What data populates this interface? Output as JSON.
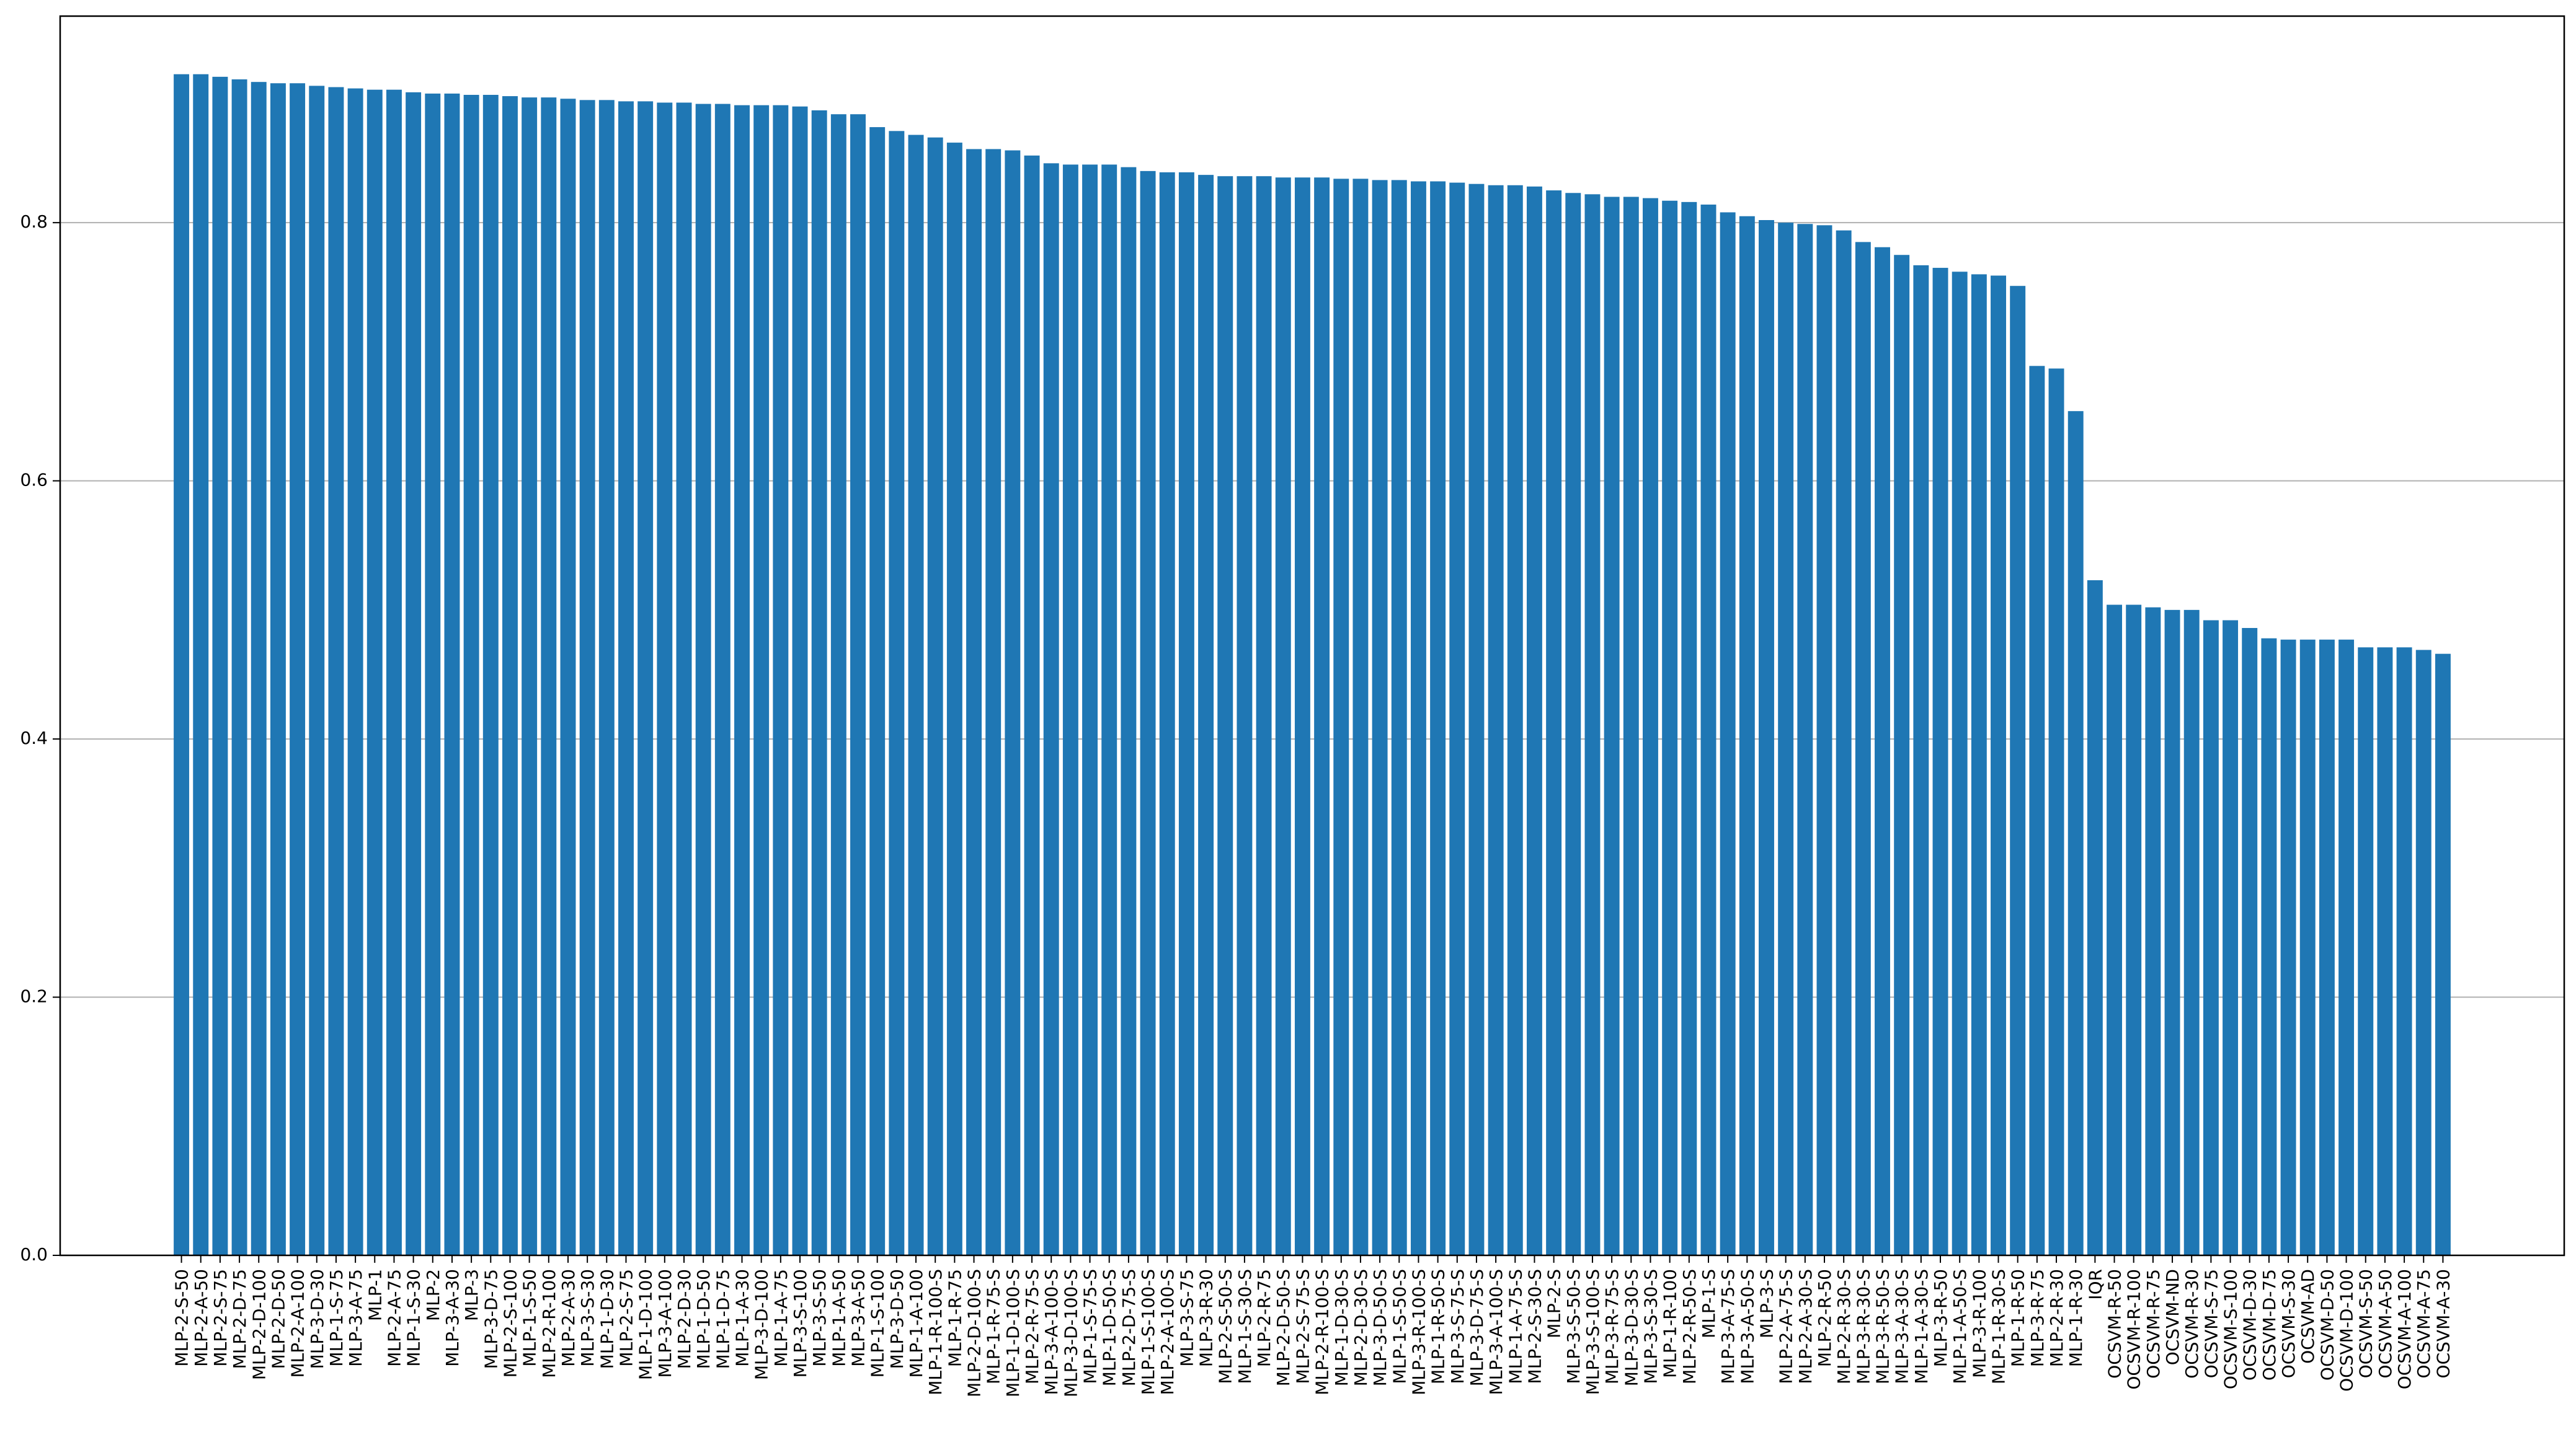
{
  "chart_data": {
    "type": "bar",
    "color": "#1f77b4",
    "grid": "y",
    "ylim": [
      0,
      0.96
    ],
    "yticks": [
      {
        "value": 0.0,
        "label": "0.0"
      },
      {
        "value": 0.2,
        "label": "0.2"
      },
      {
        "value": 0.4,
        "label": "0.4"
      },
      {
        "value": 0.6,
        "label": "0.6"
      },
      {
        "value": 0.8,
        "label": "0.8"
      }
    ],
    "categories": [
      "MLP-2-S-50",
      "MLP-2-A-50",
      "MLP-2-S-75",
      "MLP-2-D-75",
      "MLP-2-D-100",
      "MLP-2-D-50",
      "MLP-2-A-100",
      "MLP-3-D-30",
      "MLP-1-S-75",
      "MLP-3-A-75",
      "MLP-1",
      "MLP-2-A-75",
      "MLP-1-S-30",
      "MLP-2",
      "MLP-3-A-30",
      "MLP-3",
      "MLP-3-D-75",
      "MLP-2-S-100",
      "MLP-1-S-50",
      "MLP-2-R-100",
      "MLP-2-A-30",
      "MLP-3-S-30",
      "MLP-1-D-30",
      "MLP-2-S-75",
      "MLP-1-D-100",
      "MLP-3-A-100",
      "MLP-2-D-30",
      "MLP-1-D-50",
      "MLP-1-D-75",
      "MLP-1-A-30",
      "MLP-3-D-100",
      "MLP-1-A-75",
      "MLP-3-S-100",
      "MLP-3-S-50",
      "MLP-1-A-50",
      "MLP-3-A-50",
      "MLP-1-S-100",
      "MLP-3-D-50",
      "MLP-1-A-100",
      "MLP-1-R-100-S",
      "MLP-1-R-75",
      "MLP-2-D-100-S",
      "MLP-1-R-75-S",
      "MLP-1-D-100-S",
      "MLP-2-R-75-S",
      "MLP-3-A-100-S",
      "MLP-3-D-100-S",
      "MLP-1-S-75-S",
      "MLP-1-D-50-S",
      "MLP-2-D-75-S",
      "MLP-1-S-100-S",
      "MLP-2-A-100-S",
      "MLP-3-S-75",
      "MLP-3-R-30",
      "MLP-2-S-50-S",
      "MLP-1-S-30-S",
      "MLP-2-R-75",
      "MLP-2-D-50-S",
      "MLP-2-S-75-S",
      "MLP-2-R-100-S",
      "MLP-1-D-30-S",
      "MLP-2-D-30-S",
      "MLP-3-D-50-S",
      "MLP-1-S-50-S",
      "MLP-3-R-100-S",
      "MLP-1-R-50-S",
      "MLP-3-S-75-S",
      "MLP-3-D-75-S",
      "MLP-3-A-100-S",
      "MLP-1-A-75-S",
      "MLP-2-S-30-S",
      "MLP-2-S",
      "MLP-3-S-50-S",
      "MLP-3-S-100-S",
      "MLP-3-R-75-S",
      "MLP-3-D-30-S",
      "MLP-3-S-30-S",
      "MLP-1-R-100",
      "MLP-2-R-50-S",
      "MLP-1-S",
      "MLP-3-A-75-S",
      "MLP-3-A-50-S",
      "MLP-3-S",
      "MLP-2-A-75-S",
      "MLP-2-A-30-S",
      "MLP-2-R-50",
      "MLP-2-R-30-S",
      "MLP-3-R-30-S",
      "MLP-3-R-50-S",
      "MLP-3-A-30-S",
      "MLP-1-A-30-S",
      "MLP-3-R-50",
      "MLP-1-A-50-S",
      "MLP-3-R-100",
      "MLP-1-R-30-S",
      "MLP-1-R-50",
      "MLP-3-R-75",
      "MLP-2-R-30",
      "MLP-1-R-30",
      "IQR",
      "OCSVM-R-50",
      "OCSVM-R-100",
      "OCSVM-R-75",
      "OCSVM-ND",
      "OCSVM-R-30",
      "OCSVM-S-75",
      "OCSVM-S-100",
      "OCSVM-D-30",
      "OCSVM-D-75",
      "OCSVM-S-30",
      "OCSVM-AD",
      "OCSVM-D-50",
      "OCSVM-D-100",
      "OCSVM-S-50",
      "OCSVM-A-50",
      "OCSVM-A-100",
      "OCSVM-A-75",
      "OCSVM-A-30"
    ],
    "values": [
      0.915,
      0.915,
      0.913,
      0.911,
      0.909,
      0.908,
      0.908,
      0.906,
      0.905,
      0.904,
      0.903,
      0.903,
      0.901,
      0.9,
      0.9,
      0.899,
      0.899,
      0.898,
      0.897,
      0.897,
      0.896,
      0.895,
      0.895,
      0.894,
      0.894,
      0.893,
      0.893,
      0.892,
      0.892,
      0.891,
      0.891,
      0.891,
      0.89,
      0.887,
      0.884,
      0.884,
      0.874,
      0.871,
      0.868,
      0.866,
      0.862,
      0.857,
      0.857,
      0.856,
      0.852,
      0.846,
      0.845,
      0.845,
      0.845,
      0.843,
      0.84,
      0.839,
      0.839,
      0.837,
      0.836,
      0.836,
      0.836,
      0.835,
      0.835,
      0.835,
      0.834,
      0.834,
      0.833,
      0.833,
      0.832,
      0.832,
      0.831,
      0.83,
      0.829,
      0.829,
      0.828,
      0.825,
      0.823,
      0.822,
      0.82,
      0.82,
      0.819,
      0.817,
      0.816,
      0.814,
      0.808,
      0.805,
      0.802,
      0.8,
      0.799,
      0.798,
      0.794,
      0.785,
      0.781,
      0.775,
      0.767,
      0.765,
      0.762,
      0.76,
      0.759,
      0.751,
      0.689,
      0.687,
      0.654,
      0.523,
      0.504,
      0.504,
      0.502,
      0.5,
      0.5,
      0.492,
      0.492,
      0.486,
      0.478,
      0.477,
      0.477,
      0.477,
      0.477,
      0.471,
      0.471,
      0.471,
      0.469,
      0.466
    ]
  }
}
